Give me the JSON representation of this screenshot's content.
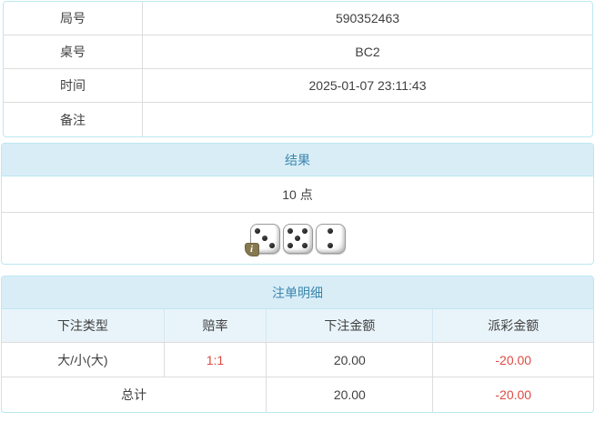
{
  "info_table": {
    "rows": [
      {
        "label": "局号",
        "value": "590352463"
      },
      {
        "label": "桌号",
        "value": "BC2"
      },
      {
        "label": "时间",
        "value": "2025-01-07 23:11:43"
      },
      {
        "label": "备注",
        "value": ""
      }
    ]
  },
  "result_panel": {
    "title": "结果",
    "points": "10 点",
    "dice": [
      3,
      5,
      2
    ],
    "info_icon": "i"
  },
  "bets_panel": {
    "title": "注单明细",
    "columns": [
      "下注类型",
      "赔率",
      "下注金额",
      "派彩金额"
    ],
    "rows": [
      {
        "type": "大/小(大)",
        "odds": "1:1",
        "amount": "20.00",
        "payout": "-20.00"
      }
    ],
    "total": {
      "label": "总计",
      "amount": "20.00",
      "payout": "-20.00"
    }
  },
  "colors": {
    "panel_border": "#bce8f1",
    "heading_bg": "#d9edf7",
    "heading_text": "#3a87ad",
    "subheader_bg": "#e9f4fa",
    "row_border": "#dddddd",
    "negative_red": "#dd4b43",
    "info_badge_bg": "#86784f"
  }
}
